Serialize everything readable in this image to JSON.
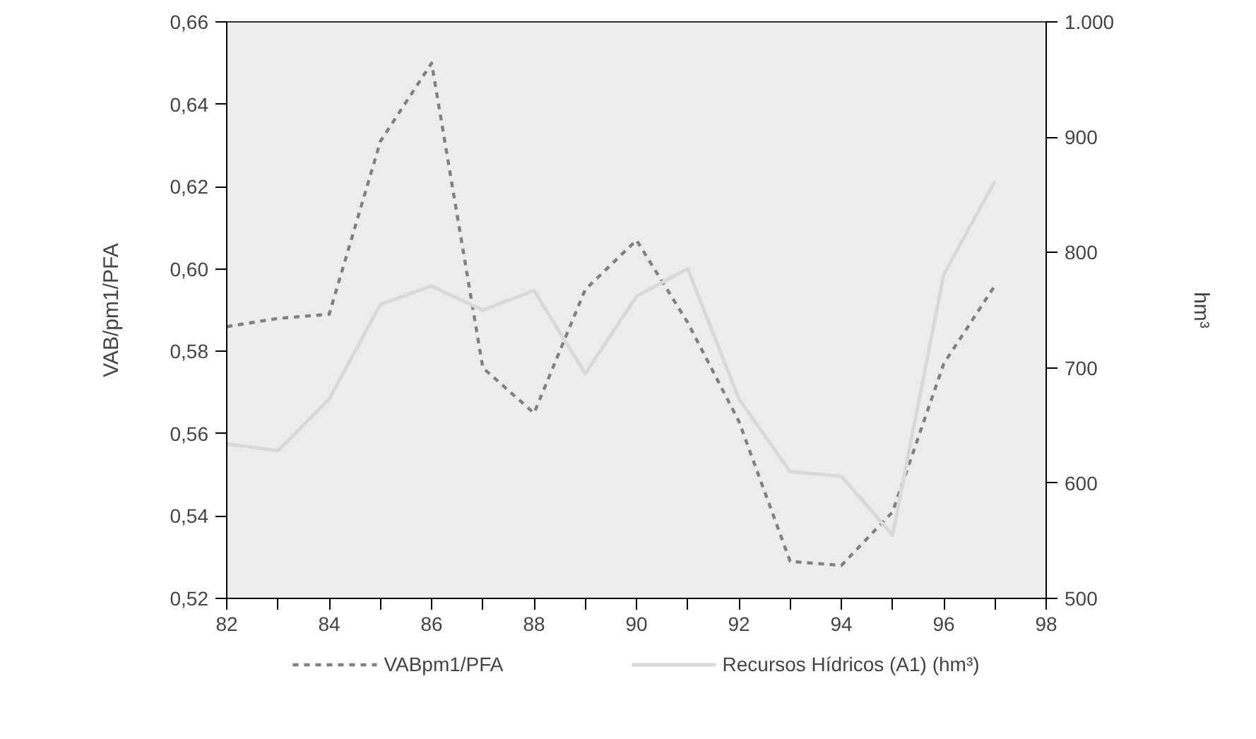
{
  "chart_data": {
    "type": "line",
    "ylabel": "VAB/pm1/PFA",
    "y2label": "hm³",
    "x": [
      82,
      83,
      84,
      85,
      86,
      87,
      88,
      89,
      90,
      91,
      92,
      93,
      94,
      95,
      96,
      97
    ],
    "xlim": [
      82,
      98
    ],
    "xticks": [
      82,
      {
        "value": 83,
        "label": null
      },
      84,
      {
        "value": 85,
        "label": null
      },
      86,
      {
        "value": 87,
        "label": null
      },
      88,
      {
        "value": 89,
        "label": null
      },
      90,
      {
        "value": 91,
        "label": null
      },
      92,
      {
        "value": 93,
        "label": null
      },
      94,
      {
        "value": 95,
        "label": null
      },
      96,
      {
        "value": 97,
        "label": null
      },
      98
    ],
    "ylim": [
      0.52,
      0.66
    ],
    "yticks": [
      {
        "value": 0.52,
        "label": "0,52"
      },
      {
        "value": 0.54,
        "label": "0,54"
      },
      {
        "value": 0.56,
        "label": "0,56"
      },
      {
        "value": 0.58,
        "label": "0,58"
      },
      {
        "value": 0.6,
        "label": "0,60"
      },
      {
        "value": 0.62,
        "label": "0,62"
      },
      {
        "value": 0.64,
        "label": "0,64"
      },
      {
        "value": 0.66,
        "label": "0,66"
      }
    ],
    "y2lim": [
      500,
      1000
    ],
    "y2ticks": [
      500,
      600,
      700,
      800,
      900,
      {
        "value": 1000,
        "label": "1.000"
      }
    ],
    "grid": false,
    "legend": "bottom",
    "series": [
      {
        "name": "VABpm1/PFA",
        "color": "#808080",
        "line_style": "dashed",
        "values": [
          0.586,
          0.588,
          0.589,
          0.631,
          0.65,
          0.576,
          0.565,
          0.595,
          0.607,
          0.587,
          0.563,
          0.529,
          0.528,
          0.541,
          0.577,
          0.596
        ]
      },
      {
        "name": "Recursos Hídricos (A1) (hm³)",
        "color": "#d9d9d9",
        "line_style": "solid",
        "axis": "y2",
        "values": [
          634,
          628,
          673,
          755,
          771,
          750,
          767,
          695,
          762,
          786,
          673,
          610,
          606,
          555,
          781,
          862
        ]
      }
    ]
  }
}
